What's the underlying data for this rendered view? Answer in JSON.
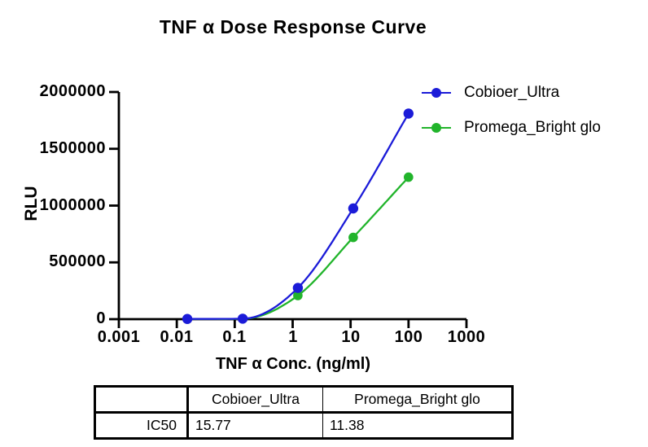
{
  "chart_data": {
    "type": "line",
    "title": "TNF α Dose Response Curve",
    "xlabel": "TNF α Conc. (ng/ml)",
    "ylabel": "RLU",
    "x_scale": "log",
    "xlim": [
      0.001,
      1000
    ],
    "ylim": [
      0,
      2000000
    ],
    "x_ticks": [
      "0.001",
      "0.01",
      "0.1",
      "1",
      "10",
      "100",
      "1000"
    ],
    "y_ticks": [
      "0",
      "500000",
      "1000000",
      "1500000",
      "2000000"
    ],
    "grid": false,
    "legend_position": "top-right",
    "axis_color": "#000000",
    "series": [
      {
        "name": "Cobioer_Ultra",
        "color": "#1B1BD8",
        "marker": "circle",
        "x": [
          0.0152,
          0.137,
          1.23,
          11.1,
          100
        ],
        "y": [
          2000,
          4000,
          275000,
          975000,
          1810000
        ]
      },
      {
        "name": "Promega_Bright glo",
        "color": "#21B42B",
        "marker": "circle",
        "x": [
          0.0152,
          0.137,
          1.23,
          11.1,
          100
        ],
        "y": [
          1000,
          3000,
          208000,
          720000,
          1250000
        ]
      }
    ]
  },
  "table": {
    "headers": [
      "",
      "Cobioer_Ultra",
      "Promega_Bright glo"
    ],
    "rows": [
      {
        "label": "IC50",
        "values": [
          "15.77",
          "11.38"
        ]
      }
    ]
  }
}
